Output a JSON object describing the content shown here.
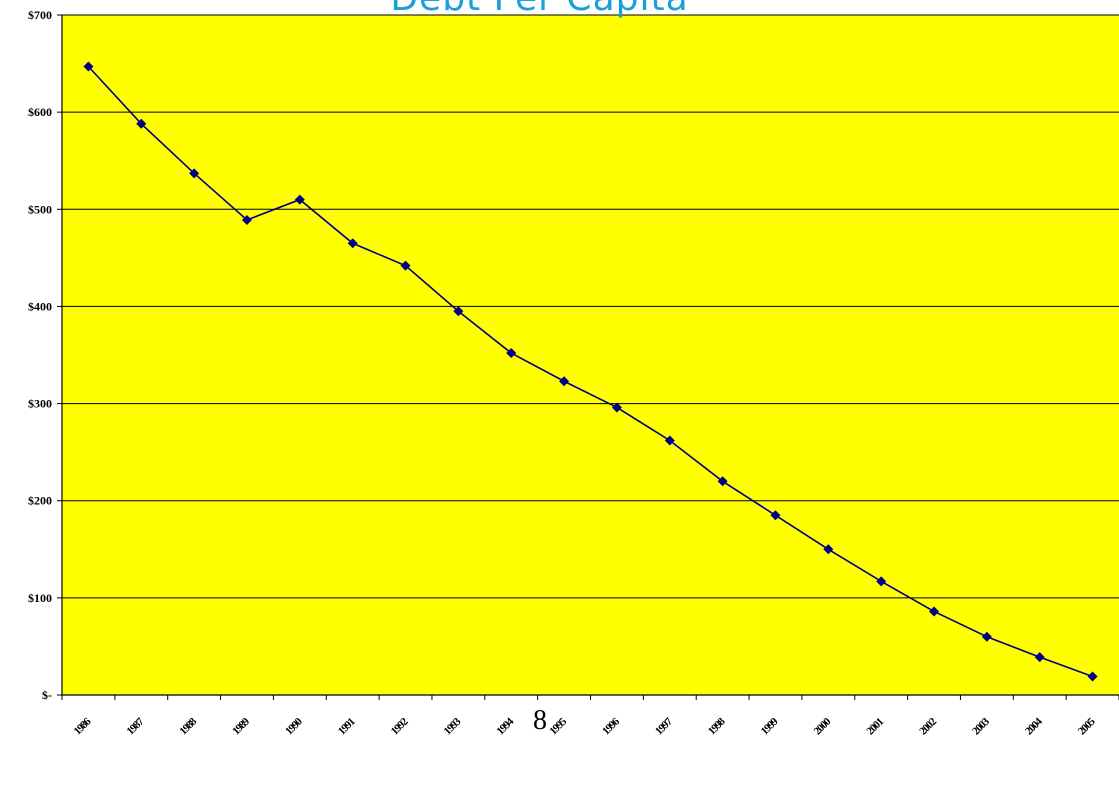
{
  "chart_data": {
    "type": "line",
    "title": "Debt Per Capita",
    "xlabel": "",
    "ylabel": "",
    "categories": [
      "1986",
      "1987",
      "1988",
      "1989",
      "1990",
      "1991",
      "1992",
      "1993",
      "1994",
      "1995",
      "1996",
      "1997",
      "1998",
      "1999",
      "2000",
      "2001",
      "2002",
      "2003",
      "2004",
      "2005"
    ],
    "series": [
      {
        "values": [
          647,
          588,
          537,
          489,
          510,
          465,
          442,
          395,
          352,
          323,
          296,
          262,
          220,
          185,
          150,
          117,
          86,
          60,
          39,
          19
        ]
      }
    ],
    "ylim": [
      0,
      700
    ],
    "yticks": [
      0,
      100,
      200,
      300,
      400,
      500,
      600,
      700
    ],
    "ytick_labels": [
      "$-",
      "$100",
      "$200",
      "$300",
      "$400",
      "$500",
      "$600",
      "$700"
    ],
    "grid": true,
    "legend": "none",
    "plot_background": "#ffff00",
    "line_color": "#000080",
    "marker": "diamond"
  },
  "footer": {
    "page_number": "8"
  },
  "colors": {
    "title": "#1aa0d6",
    "plot_area": "#ffff00",
    "series": "#000080",
    "gridline": "#000000"
  }
}
